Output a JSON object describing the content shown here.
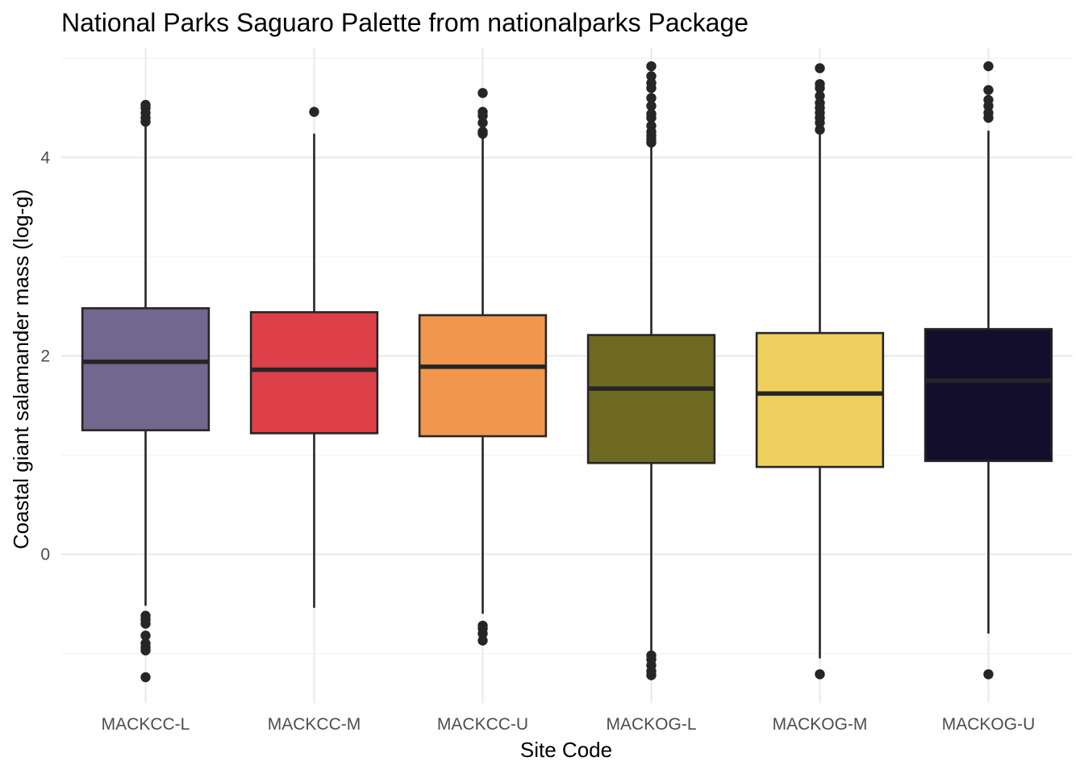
{
  "chart_data": {
    "type": "boxplot",
    "title": "National Parks Saguaro Palette from nationalparks Package",
    "xlabel": "Site Code",
    "ylabel": "Coastal giant salamander mass (log-g)",
    "ylim": [
      -1.5,
      5.1
    ],
    "y_ticks": [
      0,
      2,
      4
    ],
    "y_minor_ticks": [
      -1,
      1,
      3,
      5
    ],
    "grid": true,
    "legend": "none",
    "categories": [
      "MACKCC-L",
      "MACKCC-M",
      "MACKCC-U",
      "MACKOG-L",
      "MACKOG-M",
      "MACKOG-U"
    ],
    "boxes": [
      {
        "category": "MACKCC-L",
        "color": "#72678F",
        "whisker_low": -0.52,
        "q1": 1.25,
        "median": 1.94,
        "q3": 2.48,
        "whisker_high": 4.35,
        "outliers": [
          4.53,
          4.5,
          4.45,
          4.4,
          4.36,
          -0.62,
          -0.66,
          -0.7,
          -0.82,
          -0.9,
          -0.94,
          -0.97,
          -1.24
        ]
      },
      {
        "category": "MACKCC-M",
        "color": "#DD4049",
        "whisker_low": -0.54,
        "q1": 1.22,
        "median": 1.86,
        "q3": 2.44,
        "whisker_high": 4.24,
        "outliers": [
          4.46
        ]
      },
      {
        "category": "MACKCC-U",
        "color": "#F0974D",
        "whisker_low": -0.6,
        "q1": 1.19,
        "median": 1.89,
        "q3": 2.41,
        "whisker_high": 4.22,
        "outliers": [
          4.65,
          4.46,
          4.42,
          4.35,
          4.26,
          4.24,
          -0.72,
          -0.75,
          -0.8,
          -0.87
        ]
      },
      {
        "category": "MACKOG-L",
        "color": "#6F6A22",
        "whisker_low": -1.0,
        "q1": 0.92,
        "median": 1.67,
        "q3": 2.21,
        "whisker_high": 4.12,
        "outliers": [
          4.92,
          4.82,
          4.75,
          4.7,
          4.6,
          4.52,
          4.44,
          4.4,
          4.32,
          4.26,
          4.22,
          4.18,
          4.15,
          -1.02,
          -1.06,
          -1.12,
          -1.18,
          -1.22
        ]
      },
      {
        "category": "MACKOG-M",
        "color": "#EFCF5E",
        "whisker_low": -1.05,
        "q1": 0.88,
        "median": 1.62,
        "q3": 2.23,
        "whisker_high": 4.25,
        "outliers": [
          4.9,
          4.74,
          4.7,
          4.62,
          4.55,
          4.5,
          4.45,
          4.4,
          4.35,
          4.28,
          -1.21
        ]
      },
      {
        "category": "MACKOG-U",
        "color": "#140E2D",
        "whisker_low": -0.8,
        "q1": 0.94,
        "median": 1.75,
        "q3": 2.27,
        "whisker_high": 4.27,
        "outliers": [
          4.92,
          4.68,
          4.58,
          4.52,
          4.45,
          4.4,
          -1.21
        ]
      }
    ]
  }
}
